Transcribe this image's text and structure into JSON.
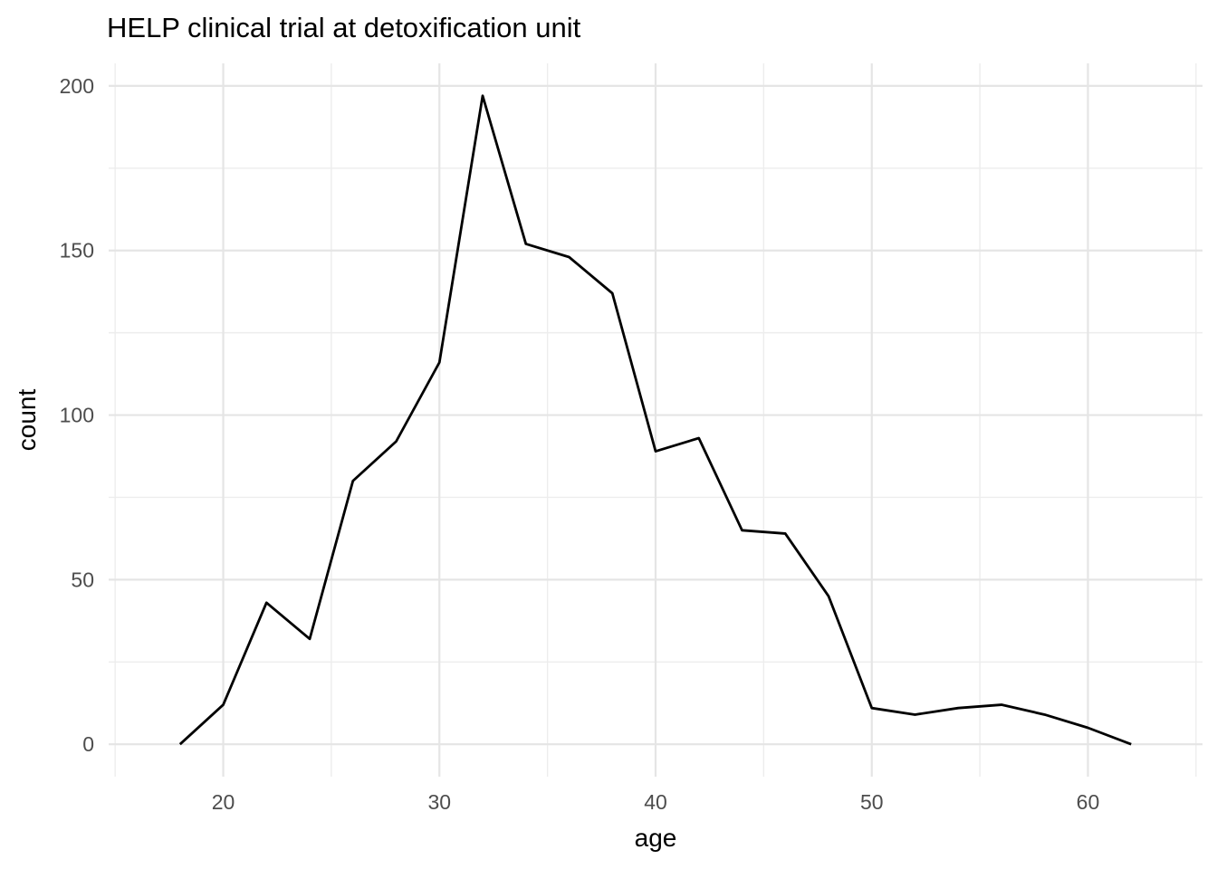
{
  "title": "HELP clinical trial at detoxification unit",
  "colors": {
    "background": "#ffffff",
    "line": "#000000",
    "grid_major": "#e5e5e5",
    "grid_minor": "#ededed",
    "tick_label": "#4d4d4d",
    "axis_title": "#000000"
  },
  "chart_data": {
    "type": "line",
    "title": "HELP clinical trial at detoxification unit",
    "xlabel": "age",
    "ylabel": "count",
    "x": [
      18,
      20,
      22,
      24,
      26,
      28,
      30,
      32,
      34,
      36,
      38,
      40,
      42,
      44,
      46,
      48,
      50,
      52,
      54,
      56,
      58,
      60,
      62
    ],
    "y": [
      0,
      12,
      43,
      32,
      80,
      92,
      116,
      197,
      152,
      148,
      137,
      89,
      93,
      65,
      64,
      45,
      11,
      9,
      11,
      12,
      9,
      5,
      0
    ],
    "x_ticks": [
      20,
      30,
      40,
      50,
      60
    ],
    "y_ticks": [
      0,
      50,
      100,
      150,
      200
    ],
    "x_minor_ticks": [
      15,
      25,
      35,
      45,
      55,
      65
    ],
    "y_minor_ticks": [
      25,
      75,
      125,
      175
    ],
    "xlim": [
      14.7,
      65.3
    ],
    "ylim": [
      -9.85,
      206.85
    ],
    "grid": "major and minor, light gray on white",
    "legend": "none"
  }
}
